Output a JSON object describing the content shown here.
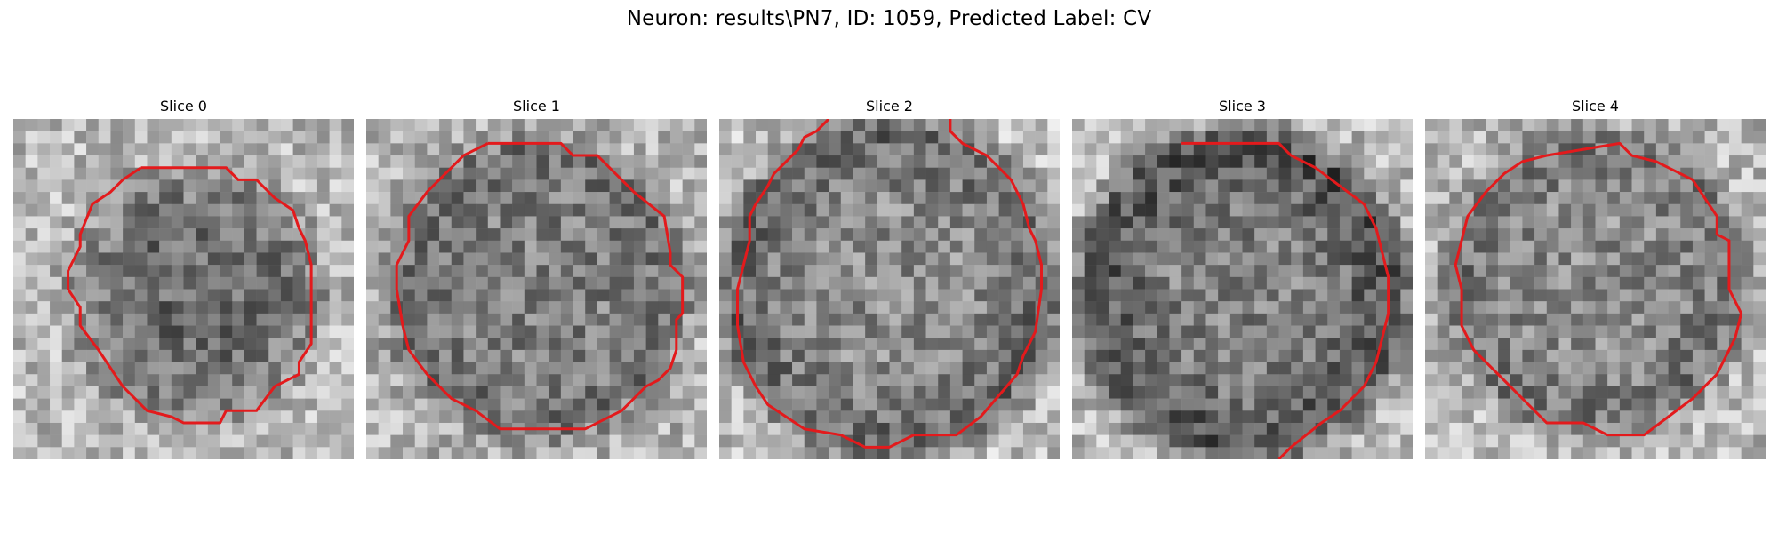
{
  "figure": {
    "suptitle": "Neuron: results\\PN7, ID: 1059, Predicted Label: CV"
  },
  "panels": [
    {
      "title": "Slice 0"
    },
    {
      "title": "Slice 1"
    },
    {
      "title": "Slice 2"
    },
    {
      "title": "Slice 3"
    },
    {
      "title": "Slice 4"
    }
  ],
  "colors": {
    "contour": "#e31a1c",
    "background": "#ffffff"
  },
  "image": {
    "kind": "grayscale microscopy patches",
    "grid_size": 28
  }
}
